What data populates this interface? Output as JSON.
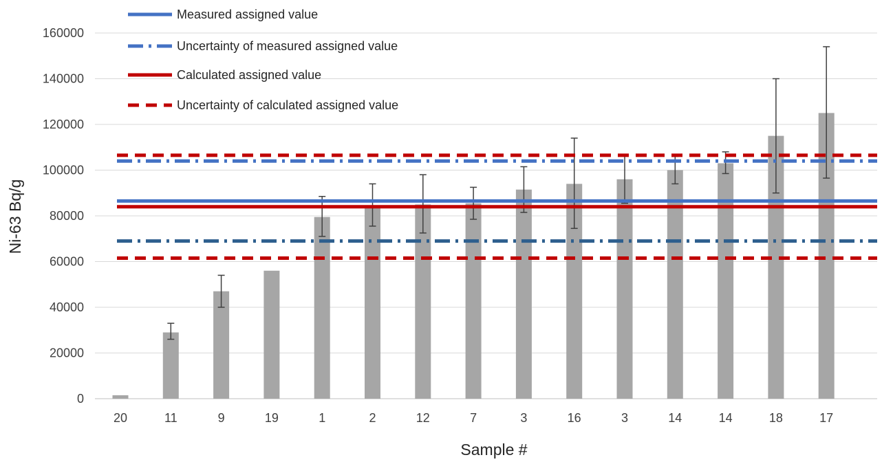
{
  "chart_data": {
    "type": "bar",
    "xlabel": "Sample #",
    "ylabel": "Ni-63 Bq/g",
    "ylim": [
      0,
      160000
    ],
    "yticks": [
      0,
      20000,
      40000,
      60000,
      80000,
      100000,
      120000,
      140000,
      160000
    ],
    "grid": true,
    "legend_position": "top-left",
    "categories": [
      "20",
      "11",
      "9",
      "19",
      "1",
      "2",
      "12",
      "7",
      "3",
      "16",
      "3",
      "14",
      "14",
      "18",
      "17"
    ],
    "series": [
      {
        "values": [
          1500,
          29000,
          47000,
          56000,
          79500,
          84500,
          85000,
          85500,
          91500,
          94000,
          96000,
          100000,
          103000,
          115000,
          125000
        ],
        "error_low": [
          null,
          26000,
          40000,
          null,
          71000,
          75500,
          72500,
          78500,
          81500,
          74500,
          85500,
          94000,
          98500,
          90000,
          96500
        ],
        "error_high": [
          null,
          33000,
          54000,
          null,
          88500,
          94000,
          98000,
          92500,
          101500,
          114000,
          106500,
          106000,
          108000,
          140000,
          154000
        ],
        "color": "#a6a6a6"
      }
    ],
    "reference_lines": [
      {
        "name": "Measured assigned value",
        "values": [
          86500
        ],
        "color": "#4472c4",
        "style": "solid"
      },
      {
        "name": "Uncertainty of measured assigned value",
        "values": [
          104000,
          69000
        ],
        "color": "#4472c4",
        "color_alt": "#2e5f8e",
        "style": "dash-dot"
      },
      {
        "name": "Calculated assigned value",
        "values": [
          84000
        ],
        "color": "#c00000",
        "style": "solid"
      },
      {
        "name": "Uncertainty of calculated assigned value",
        "values": [
          106500,
          61500
        ],
        "color": "#c00000",
        "style": "dashed"
      }
    ],
    "colors": {
      "gridline": "#d9d9d9",
      "axis": "#bfbfbf",
      "error_bar": "#404040"
    }
  }
}
